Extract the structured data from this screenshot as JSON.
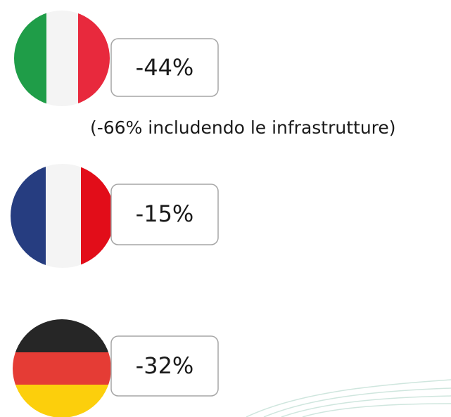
{
  "items": [
    {
      "label": "-44%",
      "note": "(-66% includendo le infrastrutture)"
    },
    {
      "label": "-15%"
    },
    {
      "label": "-32%"
    }
  ]
}
